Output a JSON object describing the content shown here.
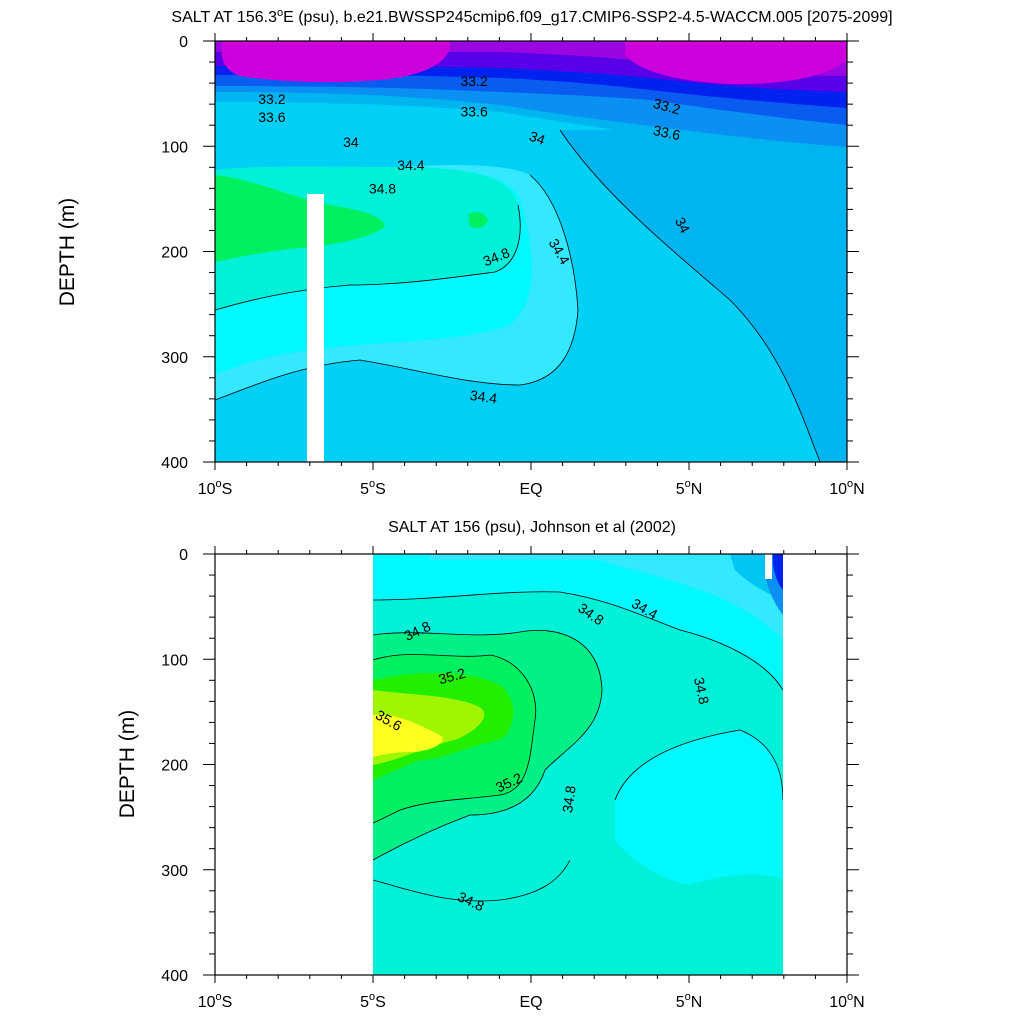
{
  "chart_data": [
    {
      "type": "heatmap",
      "subtype": "filled-contour",
      "title_main": "SALT AT 156.3",
      "title_deg": "o",
      "title_rest": "E (psu), b.e21.BWSSP245cmip6.f09_g17.CMIP6-SSP2-4.5-WACCM.005 [2075-2099]",
      "ylabel": "DEPTH (m)",
      "xlabel": "",
      "xlim": [
        -10,
        10
      ],
      "ylim": [
        400,
        0
      ],
      "y_inverted": true,
      "x_ticks": [
        {
          "v": -10,
          "n": "10",
          "s": "S"
        },
        {
          "v": -5,
          "n": "5",
          "s": "S"
        },
        {
          "v": 0,
          "n": "EQ",
          "s": ""
        },
        {
          "v": 5,
          "n": "5",
          "s": "N"
        },
        {
          "v": 10,
          "n": "10",
          "s": "N"
        }
      ],
      "y_ticks": [
        0,
        100,
        200,
        300,
        400
      ],
      "colors": {
        "c32_8": "#cc00dd",
        "c33_0": "#9a05e0",
        "c33_2": "#5a00e8",
        "c33_4": "#0022f0",
        "c33_6": "#0a5cf0",
        "c33_8": "#0a90f2",
        "c34_0": "#00b4f0",
        "c34_2": "#00d0f5",
        "c34_4": "#33e8ff",
        "c34_6": "#00f8ff",
        "c34_8": "#00f0d8",
        "c35_0": "#00f060"
      },
      "contour_labels": [
        {
          "text": "33.2",
          "x": -8.2,
          "y": 55,
          "rot": 0
        },
        {
          "text": "33.2",
          "x": -1.8,
          "y": 38,
          "rot": 0
        },
        {
          "text": "33.2",
          "x": 4.3,
          "y": 62,
          "rot": 15
        },
        {
          "text": "33.6",
          "x": -8.2,
          "y": 72,
          "rot": 0
        },
        {
          "text": "33.6",
          "x": -1.8,
          "y": 67,
          "rot": 0
        },
        {
          "text": "33.6",
          "x": 4.3,
          "y": 87,
          "rot": 12
        },
        {
          "text": "34",
          "x": -5.7,
          "y": 96,
          "rot": 0
        },
        {
          "text": "34",
          "x": 0.2,
          "y": 92,
          "rot": 20
        },
        {
          "text": "34",
          "x": 4.8,
          "y": 175,
          "rot": 62
        },
        {
          "text": "34.4",
          "x": -3.8,
          "y": 118,
          "rot": 0
        },
        {
          "text": "34.4",
          "x": 0.9,
          "y": 200,
          "rot": 60
        },
        {
          "text": "34.4",
          "x": -1.5,
          "y": 338,
          "rot": 8
        },
        {
          "text": "34.8",
          "x": -4.7,
          "y": 140,
          "rot": 0
        },
        {
          "text": "34.8",
          "x": -1.1,
          "y": 205,
          "rot": -22
        }
      ]
    },
    {
      "type": "heatmap",
      "subtype": "filled-contour",
      "title_main": "SALT AT 156 (psu), Johnson et al (2002)",
      "ylabel": "DEPTH (m)",
      "xlabel": "",
      "xlim": [
        -10,
        10
      ],
      "ylim": [
        400,
        0
      ],
      "y_inverted": true,
      "x_ticks": [
        {
          "v": -10,
          "n": "10",
          "s": "S"
        },
        {
          "v": -5,
          "n": "5",
          "s": "S"
        },
        {
          "v": 0,
          "n": "EQ",
          "s": ""
        },
        {
          "v": 5,
          "n": "5",
          "s": "N"
        },
        {
          "v": 10,
          "n": "10",
          "s": "N"
        }
      ],
      "y_ticks": [
        0,
        100,
        200,
        300,
        400
      ],
      "data_x_range": [
        -5,
        8
      ],
      "colors": {
        "c33_2": "#0022f0",
        "c33_8": "#0a90f2",
        "c34_2": "#00c4f2",
        "c34_4": "#33e8ff",
        "c34_6": "#00f8ff",
        "c34_8": "#00f0d8",
        "c35_0": "#00f088",
        "c35_2": "#00f060",
        "c35_4": "#22ee00",
        "c35_6": "#a0f500",
        "c35_8": "#ffff20"
      },
      "contour_labels": [
        {
          "text": "34.8",
          "x": -3.6,
          "y": 73,
          "rot": -25
        },
        {
          "text": "34.8",
          "x": 1.9,
          "y": 57,
          "rot": 35
        },
        {
          "text": "34.4",
          "x": 3.6,
          "y": 52,
          "rot": 30
        },
        {
          "text": "34.8",
          "x": 5.4,
          "y": 130,
          "rot": 78
        },
        {
          "text": "35.2",
          "x": -2.5,
          "y": 116,
          "rot": -15
        },
        {
          "text": "35.6",
          "x": -4.5,
          "y": 158,
          "rot": 30
        },
        {
          "text": "35.2",
          "x": -0.7,
          "y": 217,
          "rot": -25
        },
        {
          "text": "34.8",
          "x": 1.2,
          "y": 233,
          "rot": -82
        },
        {
          "text": "34.8",
          "x": -1.9,
          "y": 330,
          "rot": 25
        }
      ]
    }
  ]
}
